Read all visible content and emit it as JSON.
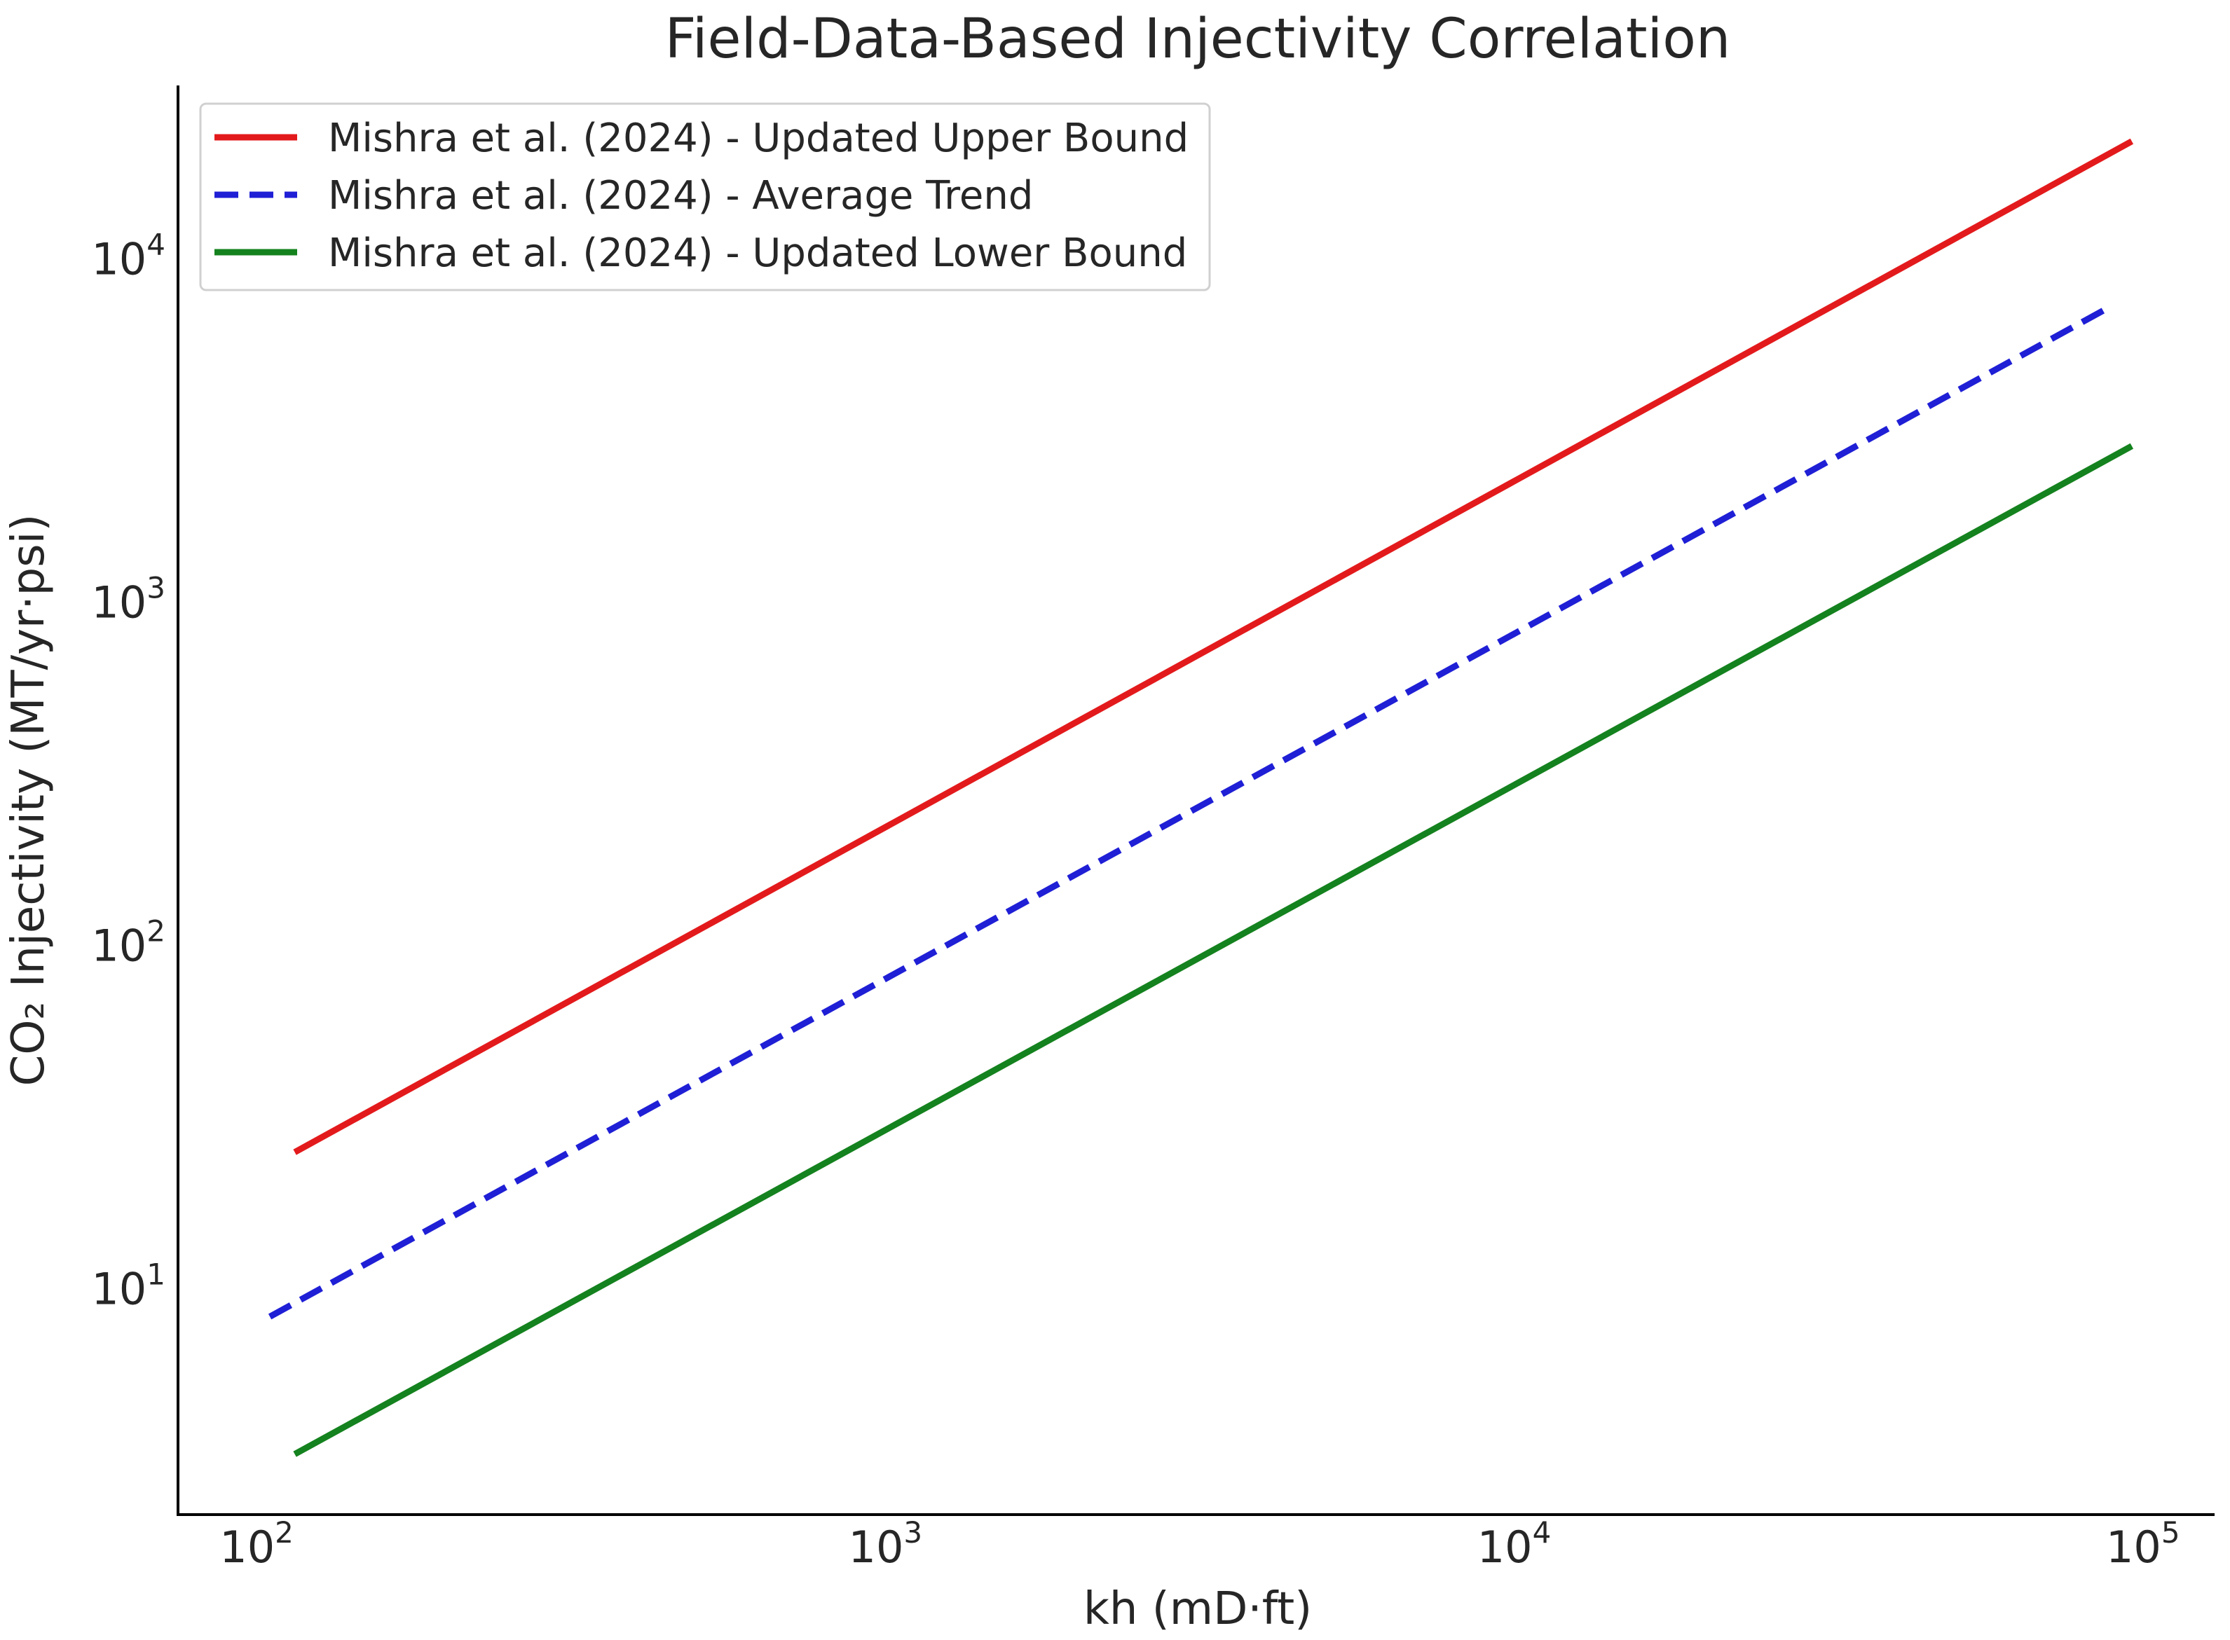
{
  "chart_data": {
    "type": "line",
    "title": "Field-Data-Based Injectivity Correlation",
    "xlabel": "kh (mD·ft)",
    "ylabel": "CO₂ Injectivity (MT/yr·psi)",
    "xscale": "log",
    "yscale": "log",
    "xlim": [
      75,
      130000
    ],
    "ylim": [
      2.2,
      32000
    ],
    "grid": false,
    "legend_position": "top-left",
    "x_ticks": [
      {
        "value": 100,
        "base": "10",
        "exp": "2"
      },
      {
        "value": 1000,
        "base": "10",
        "exp": "3"
      },
      {
        "value": 10000,
        "base": "10",
        "exp": "4"
      },
      {
        "value": 100000,
        "base": "10",
        "exp": "5"
      }
    ],
    "y_ticks": [
      {
        "value": 10,
        "base": "10",
        "exp": "1"
      },
      {
        "value": 100,
        "base": "10",
        "exp": "2"
      },
      {
        "value": 1000,
        "base": "10",
        "exp": "3"
      },
      {
        "value": 10000,
        "base": "10",
        "exp": "4"
      }
    ],
    "series": [
      {
        "name": "Mishra et al. (2024) - Updated Upper Bound",
        "color": "#e31a1c",
        "style": "solid",
        "x": [
          115,
          96000
        ],
        "y": [
          25,
          22000
        ]
      },
      {
        "name": "Mishra et al. (2024) - Average Trend",
        "color": "#1f1fd6",
        "style": "dashed",
        "x": [
          105,
          88000
        ],
        "y": [
          8.3,
          7200
        ]
      },
      {
        "name": "Mishra et al. (2024) - Updated Lower Bound",
        "color": "#14821e",
        "style": "solid",
        "x": [
          115,
          96000
        ],
        "y": [
          3.3,
          2850
        ]
      }
    ]
  }
}
